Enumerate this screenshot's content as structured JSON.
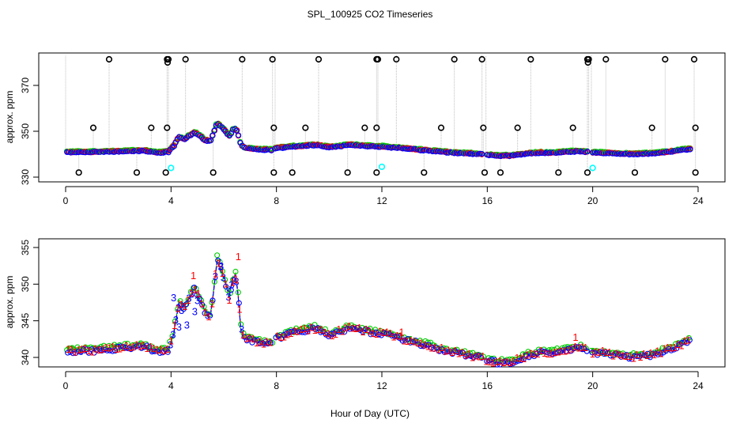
{
  "title": "SPL_100925  CO2 Timeseries",
  "colors": {
    "series1": "#ff0000",
    "series2": "#00cd00",
    "series3": "#0000ff",
    "outlier": "#000000",
    "calibration": "#00ffff",
    "vline": "#bebebe"
  },
  "chart_data": [
    {
      "type": "scatter",
      "panel": "top",
      "ylabel": "approx. ppm",
      "xlabel": "",
      "xlim": [
        0,
        24
      ],
      "ylim": [
        330,
        380
      ],
      "xticks": [
        0,
        4,
        8,
        12,
        16,
        20,
        24
      ],
      "yticks": [
        330,
        350,
        370
      ],
      "grid": false,
      "series": [
        {
          "name": "1",
          "color": "#ff0000",
          "marker": "circle"
        },
        {
          "name": "2",
          "color": "#00cd00",
          "marker": "circle"
        },
        {
          "name": "3",
          "color": "#0000ff",
          "marker": "circle"
        }
      ],
      "outliers": {
        "color": "#000000",
        "marker": "circle",
        "low_x": [
          0.5,
          2.7,
          3.8,
          5.6,
          7.9,
          8.6,
          10.7,
          11.8,
          13.6,
          15.9,
          16.5,
          18.7,
          19.8,
          21.6,
          23.9
        ],
        "low_y": 332,
        "mid_x": [
          1.05,
          3.25,
          3.85,
          7.9,
          9.1,
          11.35,
          11.8,
          14.25,
          15.85,
          17.15,
          19.25,
          22.25,
          23.9
        ],
        "mid_y": 351.5,
        "high_x": [
          1.65,
          3.85,
          3.9,
          4.55,
          6.7,
          7.85,
          9.6,
          11.8,
          11.85,
          12.55,
          14.75,
          15.8,
          17.65,
          19.8,
          19.85,
          20.5,
          22.75,
          23.85
        ],
        "high_y": 380
      },
      "calibration": {
        "color": "#00ffff",
        "x": [
          4.0,
          12.0,
          20.0
        ],
        "y": [
          334,
          334.5,
          334
        ]
      },
      "profile": {
        "x": [
          0,
          1,
          2,
          3,
          3.5,
          3.9,
          4.1,
          4.3,
          4.5,
          4.7,
          4.9,
          5.1,
          5.3,
          5.5,
          5.6,
          5.75,
          5.95,
          6.1,
          6.2,
          6.35,
          6.45,
          6.55,
          6.65,
          6.75,
          6.85,
          7.2,
          7.6,
          7.85,
          7.95,
          8.0,
          8.5,
          9.0,
          9.3,
          9.6,
          10.0,
          10.5,
          10.8,
          11.5,
          11.9,
          12.0,
          12.8,
          13.5,
          14.5,
          15.5,
          15.85,
          15.95,
          16.5,
          17.0,
          17.5,
          18.0,
          18.5,
          19.0,
          19.5,
          19.85,
          19.95,
          20.5,
          21.0,
          21.5,
          22.0,
          22.5,
          23.0,
          23.5,
          23.7
        ],
        "y": [
          340.8,
          340.9,
          341.2,
          341.5,
          340.6,
          341,
          343.5,
          347.5,
          346.5,
          348,
          349.5,
          347.8,
          346,
          345.5,
          348.5,
          353.5,
          351.5,
          349.5,
          347.8,
          350.5,
          351.2,
          348.5,
          344,
          343,
          342.5,
          342.1,
          341.9,
          341.8,
          342.3,
          342.5,
          343.3,
          343.5,
          344,
          343.8,
          343,
          343.6,
          344,
          343.5,
          343.2,
          343.3,
          342.5,
          341.8,
          340.8,
          340.1,
          339.9,
          339.6,
          339.2,
          339.4,
          340.2,
          340.6,
          340.5,
          341,
          341.2,
          341,
          340.6,
          340.5,
          340.2,
          340,
          340.2,
          340.5,
          341.2,
          342,
          342.2
        ]
      },
      "gaps": [
        [
          7.85,
          7.95
        ],
        [
          15.85,
          15.95
        ],
        [
          19.85,
          19.95
        ]
      ]
    },
    {
      "type": "scatter",
      "panel": "bottom",
      "ylabel": "approx. ppm",
      "xlabel": "Hour of Day (UTC)",
      "xlim": [
        0,
        24
      ],
      "ylim": [
        338,
        356
      ],
      "xticks": [
        0,
        4,
        8,
        12,
        16,
        20,
        24
      ],
      "yticks": [
        340,
        345,
        350,
        355
      ],
      "grid": false,
      "series": [
        {
          "name": "1",
          "color": "#ff0000",
          "marker": "digit",
          "label": "1"
        },
        {
          "name": "2",
          "color": "#00cd00",
          "marker": "circle"
        },
        {
          "name": "3",
          "color": "#0000ff",
          "marker": "digit",
          "label": "3"
        }
      ],
      "annotations": [
        {
          "text": "1",
          "x": 4.85,
          "y": 351.2,
          "color": "#ff0000"
        },
        {
          "text": "1",
          "x": 6.55,
          "y": 353.8,
          "color": "#ff0000"
        },
        {
          "text": "1",
          "x": 19.35,
          "y": 342.8,
          "color": "#ff0000"
        },
        {
          "text": "1",
          "x": 12.75,
          "y": 343.5,
          "color": "#ff0000"
        }
      ]
    }
  ],
  "tick_labels": {
    "top_x": [
      "0",
      "4",
      "8",
      "12",
      "16",
      "20",
      "24"
    ],
    "top_y": [
      "330",
      "350",
      "370"
    ],
    "bottom_x": [
      "0",
      "4",
      "8",
      "12",
      "16",
      "20",
      "24"
    ],
    "bottom_y": [
      "340",
      "345",
      "350",
      "355"
    ]
  }
}
